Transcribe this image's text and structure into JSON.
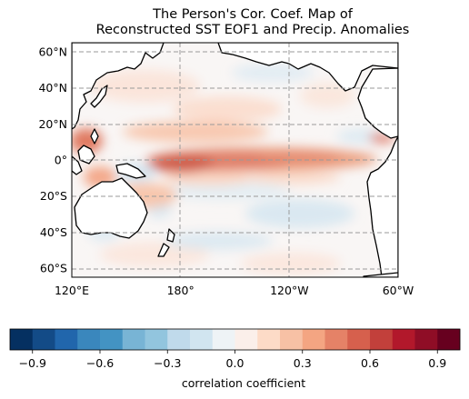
{
  "title_line1": "The Person's Cor. Coef. Map of",
  "title_line2": "Reconstructed SST EOF1 and Precip. Anomalies",
  "map": {
    "lon_range": [
      120,
      300
    ],
    "lat_range": [
      -65,
      65
    ],
    "lat_ticks": [
      {
        "value": 60,
        "label": "60°N"
      },
      {
        "value": 40,
        "label": "40°N"
      },
      {
        "value": 20,
        "label": "20°N"
      },
      {
        "value": 0,
        "label": "0°"
      },
      {
        "value": -20,
        "label": "20°S"
      },
      {
        "value": -40,
        "label": "40°S"
      },
      {
        "value": -60,
        "label": "60°S"
      }
    ],
    "lon_ticks": [
      {
        "value": 120,
        "label": "120°E"
      },
      {
        "value": 180,
        "label": "180°"
      },
      {
        "value": 240,
        "label": "120°W"
      },
      {
        "value": 300,
        "label": "60°W"
      }
    ],
    "gridlines": "dashed"
  },
  "colorbar": {
    "label": "correlation coefficient",
    "levels": [
      -1.0,
      -0.9,
      -0.8,
      -0.7,
      -0.6,
      -0.5,
      -0.4,
      -0.3,
      -0.2,
      -0.1,
      0.0,
      0.1,
      0.2,
      0.3,
      0.4,
      0.5,
      0.6,
      0.7,
      0.8,
      0.9,
      1.0
    ],
    "colors": [
      "#053061",
      "#134b87",
      "#2166ac",
      "#3a87bd",
      "#4393c3",
      "#78b4d5",
      "#92c5de",
      "#c0daeb",
      "#d1e5f0",
      "#eef3f6",
      "#fbefea",
      "#fddbc7",
      "#f7c1a5",
      "#f4a582",
      "#e58267",
      "#d6604d",
      "#c2403b",
      "#b2182b",
      "#8f0d26",
      "#67001f"
    ],
    "tick_values": [
      -0.9,
      -0.6,
      -0.3,
      0.0,
      0.3,
      0.6,
      0.9
    ],
    "tick_labels": [
      "−0.9",
      "−0.6",
      "−0.3",
      "0.0",
      "0.3",
      "0.6",
      "0.9"
    ]
  }
}
